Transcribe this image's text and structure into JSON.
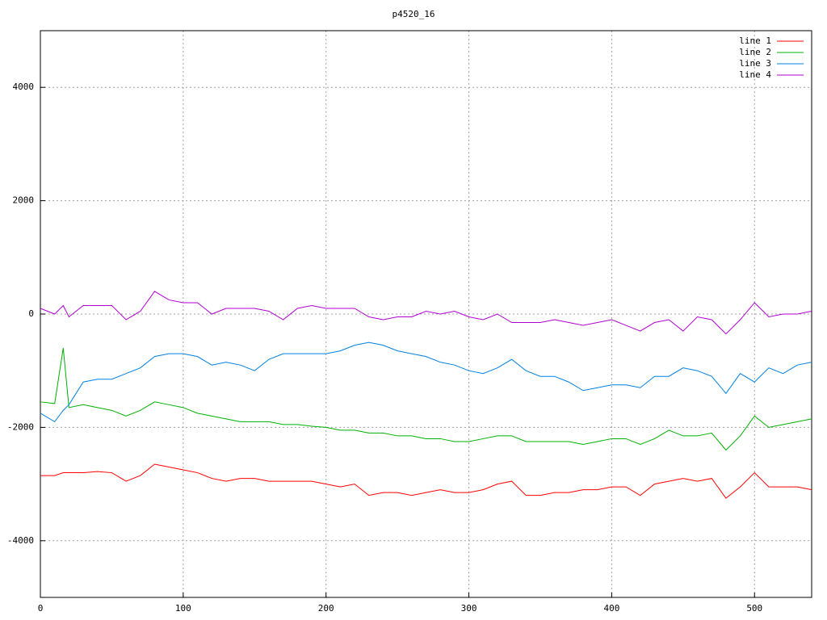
{
  "chart_data": {
    "type": "line",
    "title": "p4520_16",
    "x": [
      0,
      10,
      16,
      20,
      30,
      40,
      50,
      60,
      70,
      80,
      90,
      100,
      110,
      120,
      130,
      140,
      150,
      160,
      170,
      180,
      190,
      200,
      210,
      220,
      230,
      240,
      250,
      260,
      270,
      280,
      290,
      300,
      310,
      320,
      330,
      340,
      350,
      360,
      370,
      380,
      390,
      400,
      410,
      420,
      430,
      440,
      450,
      460,
      470,
      480,
      490,
      500,
      510,
      520,
      530,
      540
    ],
    "series": [
      {
        "name": "line 1",
        "color": "#ff0000",
        "values": [
          -2850,
          -2850,
          -2800,
          -2800,
          -2800,
          -2780,
          -2800,
          -2950,
          -2850,
          -2650,
          -2700,
          -2750,
          -2800,
          -2900,
          -2950,
          -2900,
          -2900,
          -2950,
          -2950,
          -2950,
          -2950,
          -3000,
          -3050,
          -3000,
          -3200,
          -3150,
          -3150,
          -3200,
          -3150,
          -3100,
          -3150,
          -3150,
          -3100,
          -3000,
          -2950,
          -3200,
          -3200,
          -3150,
          -3150,
          -3100,
          -3100,
          -3050,
          -3050,
          -3200,
          -3000,
          -2950,
          -2900,
          -2950,
          -2900,
          -3250,
          -3050,
          -2800,
          -3050,
          -3050,
          -3050,
          -3100
        ]
      },
      {
        "name": "line 2",
        "color": "#00b000",
        "values": [
          -1550,
          -1580,
          -600,
          -1650,
          -1600,
          -1650,
          -1700,
          -1800,
          -1700,
          -1550,
          -1600,
          -1650,
          -1750,
          -1800,
          -1850,
          -1900,
          -1900,
          -1900,
          -1950,
          -1950,
          -1980,
          -2000,
          -2050,
          -2050,
          -2100,
          -2100,
          -2150,
          -2150,
          -2200,
          -2200,
          -2250,
          -2250,
          -2200,
          -2150,
          -2150,
          -2250,
          -2250,
          -2250,
          -2250,
          -2300,
          -2250,
          -2200,
          -2200,
          -2300,
          -2200,
          -2050,
          -2150,
          -2150,
          -2100,
          -2400,
          -2150,
          -1800,
          -2000,
          -1950,
          -1900,
          -1850
        ]
      },
      {
        "name": "line 3",
        "color": "#0080e0",
        "values": [
          -1750,
          -1900,
          -1700,
          -1600,
          -1200,
          -1150,
          -1150,
          -1050,
          -950,
          -750,
          -700,
          -700,
          -750,
          -900,
          -850,
          -900,
          -1000,
          -800,
          -700,
          -700,
          -700,
          -700,
          -650,
          -550,
          -500,
          -550,
          -650,
          -700,
          -750,
          -850,
          -900,
          -1000,
          -1050,
          -950,
          -800,
          -1000,
          -1100,
          -1100,
          -1200,
          -1350,
          -1300,
          -1250,
          -1250,
          -1300,
          -1100,
          -1100,
          -950,
          -1000,
          -1100,
          -1400,
          -1050,
          -1200,
          -950,
          -1050,
          -900,
          -850
        ]
      },
      {
        "name": "line 4",
        "color": "#b000d0",
        "values": [
          100,
          0,
          150,
          -50,
          150,
          150,
          150,
          -100,
          50,
          400,
          250,
          200,
          200,
          0,
          100,
          100,
          100,
          50,
          -100,
          100,
          150,
          100,
          100,
          100,
          -50,
          -100,
          -50,
          -50,
          50,
          0,
          50,
          -50,
          -100,
          0,
          -150,
          -150,
          -150,
          -100,
          -150,
          -200,
          -150,
          -100,
          -200,
          -300,
          -150,
          -100,
          -300,
          -50,
          -100,
          -350,
          -100,
          200,
          -50,
          0,
          0,
          50
        ]
      }
    ],
    "xlim": [
      0,
      540
    ],
    "xticks": [
      0,
      100,
      200,
      300,
      400,
      500
    ],
    "ylim": [
      -5000,
      5000
    ],
    "yticks": [
      -4000,
      -2000,
      0,
      2000,
      4000
    ],
    "grid": true,
    "legend": "top-right"
  }
}
